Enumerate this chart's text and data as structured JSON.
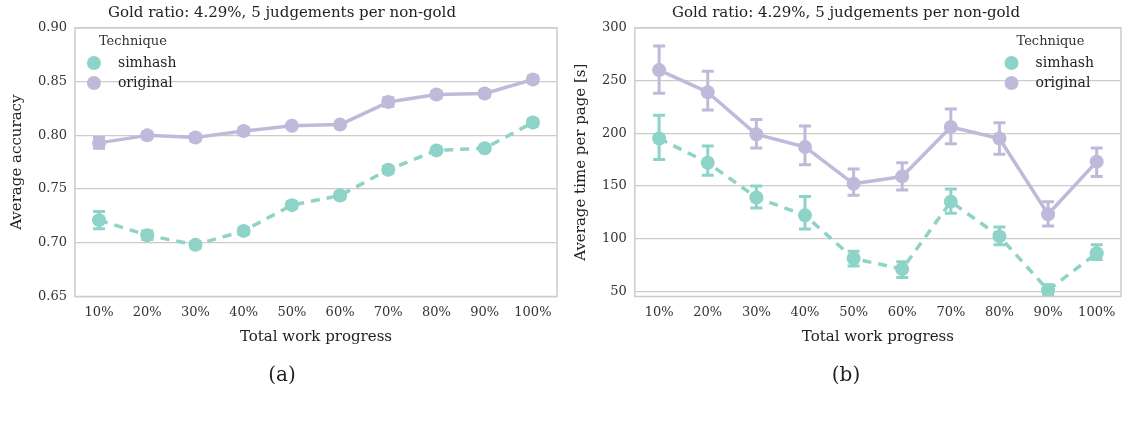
{
  "chart_data": [
    {
      "type": "line",
      "title": "Gold ratio: 4.29%, 5 judgements per non-gold",
      "xlabel": "Total work progress",
      "ylabel": "Average accuracy",
      "legend_title": "Technique",
      "legend": "top left",
      "grid": "y",
      "marker": "circle",
      "annotations": [
        "(a)"
      ],
      "categories": [
        "10%",
        "20%",
        "30%",
        "40%",
        "50%",
        "60%",
        "70%",
        "80%",
        "90%",
        "100%"
      ],
      "ylim": [
        0.65,
        0.9
      ],
      "yticks": [
        0.65,
        {
          "value": 0.7,
          "label": "0.70"
        },
        0.75,
        {
          "value": 0.8,
          "label": "0.80"
        },
        0.85,
        {
          "value": 0.9,
          "label": "0.90"
        }
      ],
      "series": [
        {
          "name": "simhash",
          "color": "#8dd3c7",
          "line_style": "dashed",
          "values": [
            0.721,
            0.707,
            0.698,
            0.711,
            0.735,
            0.744,
            0.768,
            0.786,
            0.788,
            0.812
          ],
          "errors": [
            0.008,
            0.004,
            0.003,
            0.003,
            0.003,
            0.003,
            0.003,
            0.002,
            0.002,
            0.003
          ]
        },
        {
          "name": "original",
          "color": "#bebada",
          "line_style": "solid",
          "values": [
            0.793,
            0.8,
            0.798,
            0.804,
            0.809,
            0.81,
            0.831,
            0.838,
            0.839,
            0.852
          ],
          "errors": [
            0.005,
            0.003,
            0.003,
            0.003,
            0.002,
            0.002,
            0.004,
            0.003,
            0.003,
            0.003
          ]
        }
      ]
    },
    {
      "type": "line",
      "title": "Gold ratio: 4.29%, 5 judgements per non-gold",
      "xlabel": "Total work progress",
      "ylabel": "Average time per page [s]",
      "legend_title": "Technique",
      "legend": "top right",
      "grid": "y",
      "marker": "circle",
      "annotations": [
        "(b)"
      ],
      "categories": [
        "10%",
        "20%",
        "30%",
        "40%",
        "50%",
        "60%",
        "70%",
        "80%",
        "90%",
        "100%"
      ],
      "ylim": [
        45,
        300
      ],
      "yticks": [
        50,
        100,
        150,
        200,
        250,
        300
      ],
      "series": [
        {
          "name": "simhash",
          "color": "#8dd3c7",
          "line_style": "dashed",
          "values": [
            195,
            172,
            139,
            122,
            81,
            71,
            135,
            102,
            51,
            86
          ],
          "errors": [
            [
              175,
              217
            ],
            [
              160,
              188
            ],
            [
              129,
              150
            ],
            [
              109,
              140
            ],
            [
              74,
              88
            ],
            [
              63,
              78
            ],
            [
              124,
              147
            ],
            [
              94,
              111
            ],
            [
              46,
              56
            ],
            [
              80,
              94
            ]
          ]
        },
        {
          "name": "original",
          "color": "#bebada",
          "line_style": "solid",
          "values": [
            260,
            239,
            199,
            187,
            152,
            159,
            206,
            195,
            123,
            173
          ],
          "errors": [
            [
              238,
              283
            ],
            [
              222,
              259
            ],
            [
              186,
              213
            ],
            [
              170,
              207
            ],
            [
              141,
              166
            ],
            [
              146,
              172
            ],
            [
              190,
              223
            ],
            [
              180,
              210
            ],
            [
              112,
              135
            ],
            [
              159,
              186
            ]
          ]
        }
      ]
    }
  ]
}
